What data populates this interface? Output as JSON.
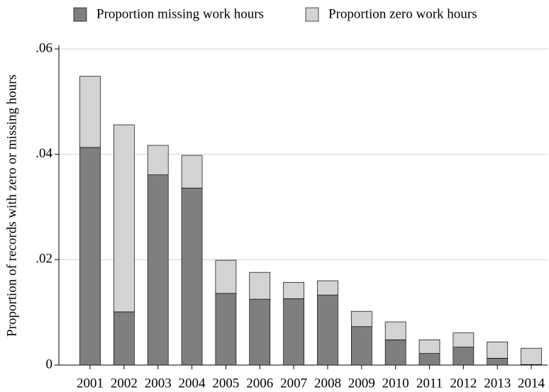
{
  "chart_data": {
    "type": "stacked_bar",
    "y_label": "Proportion of records with zero or missing hours",
    "categories": [
      "2001",
      "2002",
      "2003",
      "2004",
      "2005",
      "2006",
      "2007",
      "2008",
      "2009",
      "2010",
      "2011",
      "2012",
      "2013",
      "2014"
    ],
    "series": [
      {
        "name": "Proportion missing work hours",
        "color": "#7f7f7f",
        "values": [
          0.0413,
          0.0101,
          0.0361,
          0.0336,
          0.0136,
          0.0125,
          0.0126,
          0.0133,
          0.0073,
          0.0048,
          0.0022,
          0.0034,
          0.0013,
          0.0001
        ]
      },
      {
        "name": "Proportion zero work hours",
        "color": "#d3d3d3",
        "values": [
          0.0135,
          0.0355,
          0.0056,
          0.0062,
          0.0063,
          0.0051,
          0.0031,
          0.0027,
          0.0029,
          0.0034,
          0.0026,
          0.0027,
          0.0031,
          0.0031
        ]
      }
    ],
    "ylim": [
      0,
      0.06
    ],
    "yticks": [
      0,
      {
        "value": 0.02,
        "label": ".02"
      },
      {
        "value": 0.04,
        "label": ".04"
      },
      {
        "value": 0.06,
        "label": ".06"
      }
    ],
    "grid": true,
    "legend": "top"
  }
}
